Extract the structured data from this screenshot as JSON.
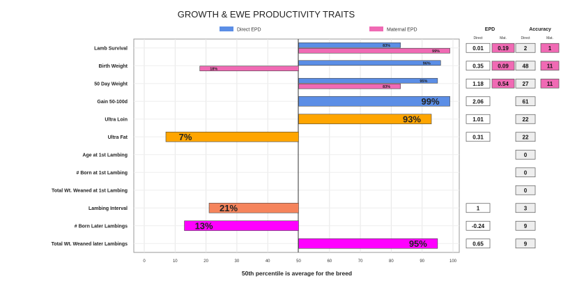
{
  "chart_data": {
    "type": "bar",
    "title": "GROWTH & EWE PRODUCTIVITY TRAITS",
    "xlabel": "50th percentile is average for the breed",
    "xlim": [
      0,
      100
    ],
    "x_ticks": [
      "0",
      "10",
      "20",
      "30",
      "40",
      "50",
      "60",
      "70",
      "80",
      "90",
      "100"
    ],
    "legend": [
      {
        "name": "Direct EPD",
        "color": "#5b8ee6"
      },
      {
        "name": "Maternal EPD",
        "color": "#f06ab4"
      }
    ],
    "rows": [
      {
        "trait": "Lamb Survival",
        "bars": [
          {
            "type": "direct",
            "value": 83,
            "label": "83%",
            "color": "#5b8ee6"
          },
          {
            "type": "maternal",
            "value": 99,
            "label": "99%",
            "color": "#f06ab4"
          }
        ]
      },
      {
        "trait": "Birth Weight",
        "bars": [
          {
            "type": "direct",
            "value": 96,
            "label": "96%",
            "color": "#5b8ee6"
          },
          {
            "type": "maternal",
            "value": 18,
            "label": "18%",
            "color": "#f06ab4"
          }
        ]
      },
      {
        "trait": "50 Day Weight",
        "bars": [
          {
            "type": "direct",
            "value": 95,
            "label": "95%",
            "color": "#5b8ee6"
          },
          {
            "type": "maternal",
            "value": 83,
            "label": "83%",
            "color": "#f06ab4"
          }
        ]
      },
      {
        "trait": "Gain 50-100d",
        "bars": [
          {
            "type": "single",
            "value": 99,
            "label": "99%",
            "color": "#5b8ee6"
          }
        ]
      },
      {
        "trait": "Ultra Loin",
        "bars": [
          {
            "type": "single",
            "value": 93,
            "label": "93%",
            "color": "#ffa500"
          }
        ]
      },
      {
        "trait": "Ultra Fat",
        "bars": [
          {
            "type": "single",
            "value": 7,
            "label": "7%",
            "color": "#ffa500"
          }
        ]
      },
      {
        "trait": "Age at 1st Lambing",
        "bars": []
      },
      {
        "trait": "# Born at 1st Lambing",
        "bars": []
      },
      {
        "trait": "Total Wt. Weaned at 1st Lambing",
        "bars": []
      },
      {
        "trait": "Lambing Interval",
        "bars": [
          {
            "type": "single",
            "value": 21,
            "label": "21%",
            "color": "#f5845c"
          }
        ]
      },
      {
        "trait": "# Born Later Lambings",
        "bars": [
          {
            "type": "single",
            "value": 13,
            "label": "13%",
            "color": "#ff00ff"
          }
        ]
      },
      {
        "trait": "Total Wt. Weaned later Lambings",
        "bars": [
          {
            "type": "single",
            "value": 95,
            "label": "95%",
            "color": "#ff00ff"
          }
        ]
      }
    ],
    "table": {
      "epd_header": "EPD",
      "accuracy_header": "Accuracy",
      "sub_direct": "Direct",
      "sub_mat": "Mat.",
      "rows": [
        {
          "epd_direct": "0.01",
          "epd_mat": "0.19",
          "acc_direct": "2",
          "acc_mat": "1"
        },
        {
          "epd_direct": "0.35",
          "epd_mat": "0.09",
          "acc_direct": "48",
          "acc_mat": "11"
        },
        {
          "epd_direct": "1.18",
          "epd_mat": "0.54",
          "acc_direct": "27",
          "acc_mat": "11"
        },
        {
          "epd_direct": "2.06",
          "epd_mat": null,
          "acc_direct": "61",
          "acc_mat": null
        },
        {
          "epd_direct": "1.01",
          "epd_mat": null,
          "acc_direct": "22",
          "acc_mat": null
        },
        {
          "epd_direct": "0.31",
          "epd_mat": null,
          "acc_direct": "22",
          "acc_mat": null
        },
        {
          "epd_direct": null,
          "epd_mat": null,
          "acc_direct": "0",
          "acc_mat": null
        },
        {
          "epd_direct": null,
          "epd_mat": null,
          "acc_direct": "0",
          "acc_mat": null
        },
        {
          "epd_direct": null,
          "epd_mat": null,
          "acc_direct": "0",
          "acc_mat": null
        },
        {
          "epd_direct": "1",
          "epd_mat": null,
          "acc_direct": "3",
          "acc_mat": null
        },
        {
          "epd_direct": "-0.24",
          "epd_mat": null,
          "acc_direct": "9",
          "acc_mat": null
        },
        {
          "epd_direct": "0.65",
          "epd_mat": null,
          "acc_direct": "9",
          "acc_mat": null
        }
      ]
    }
  },
  "colors": {
    "mat_box_fill": "#f06ab4",
    "box_fill": "#ffffff",
    "acc_box_fill": "#eeeeee"
  }
}
